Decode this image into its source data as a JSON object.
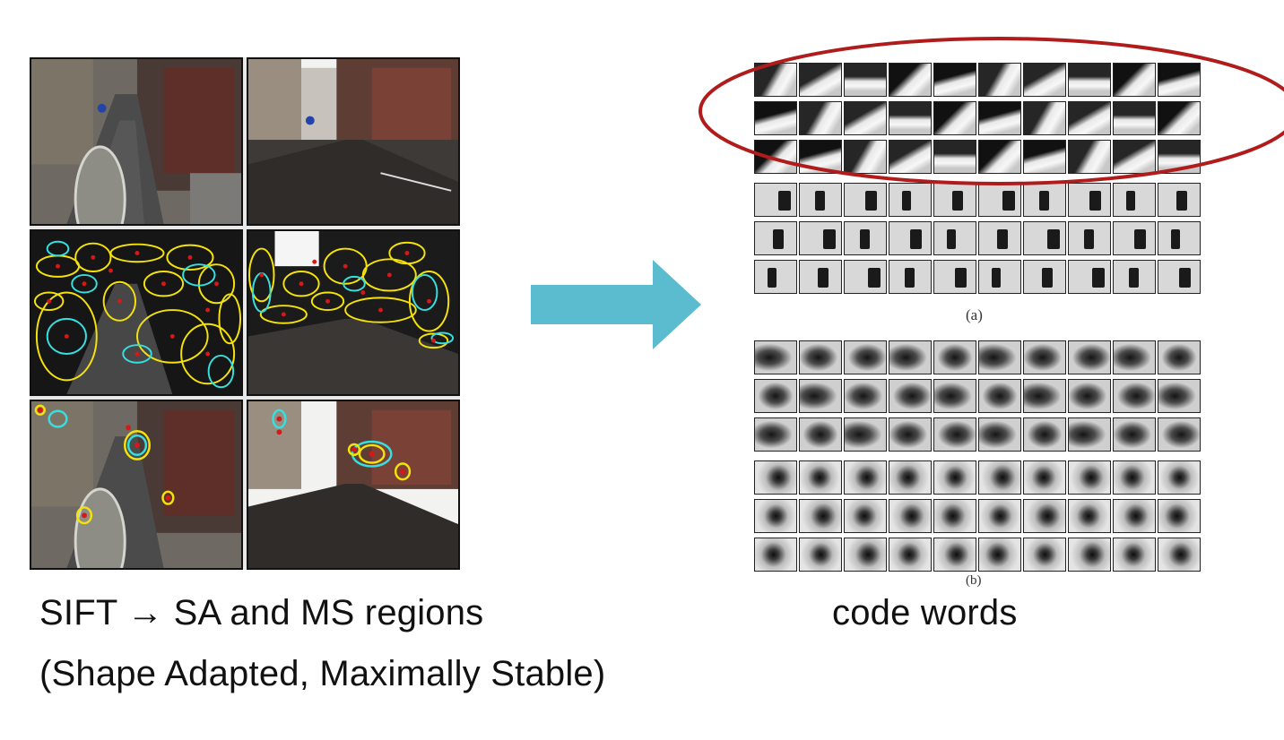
{
  "captions": {
    "left_line1": "SIFT → SA and MS regions",
    "left_line2": "(Shape Adapted, Maximally Stable)",
    "right": "code words",
    "panel_a": "(a)",
    "panel_b": "(b)"
  },
  "photos": [
    {
      "name": "street-photo-raw-left",
      "overlay": "none"
    },
    {
      "name": "street-photo-raw-right",
      "overlay": "none"
    },
    {
      "name": "street-photo-sift-left",
      "overlay": "dense"
    },
    {
      "name": "street-photo-sift-right",
      "overlay": "dense"
    },
    {
      "name": "street-photo-regions-left",
      "overlay": "sparse"
    },
    {
      "name": "street-photo-regions-right",
      "overlay": "sparse"
    }
  ],
  "colors": {
    "arrow": "#5bbccf",
    "highlight_ellipse": "#b01c1c",
    "feature_yellow": "#f4e20a",
    "feature_cyan": "#35e0e0",
    "feature_red": "#d81818"
  }
}
